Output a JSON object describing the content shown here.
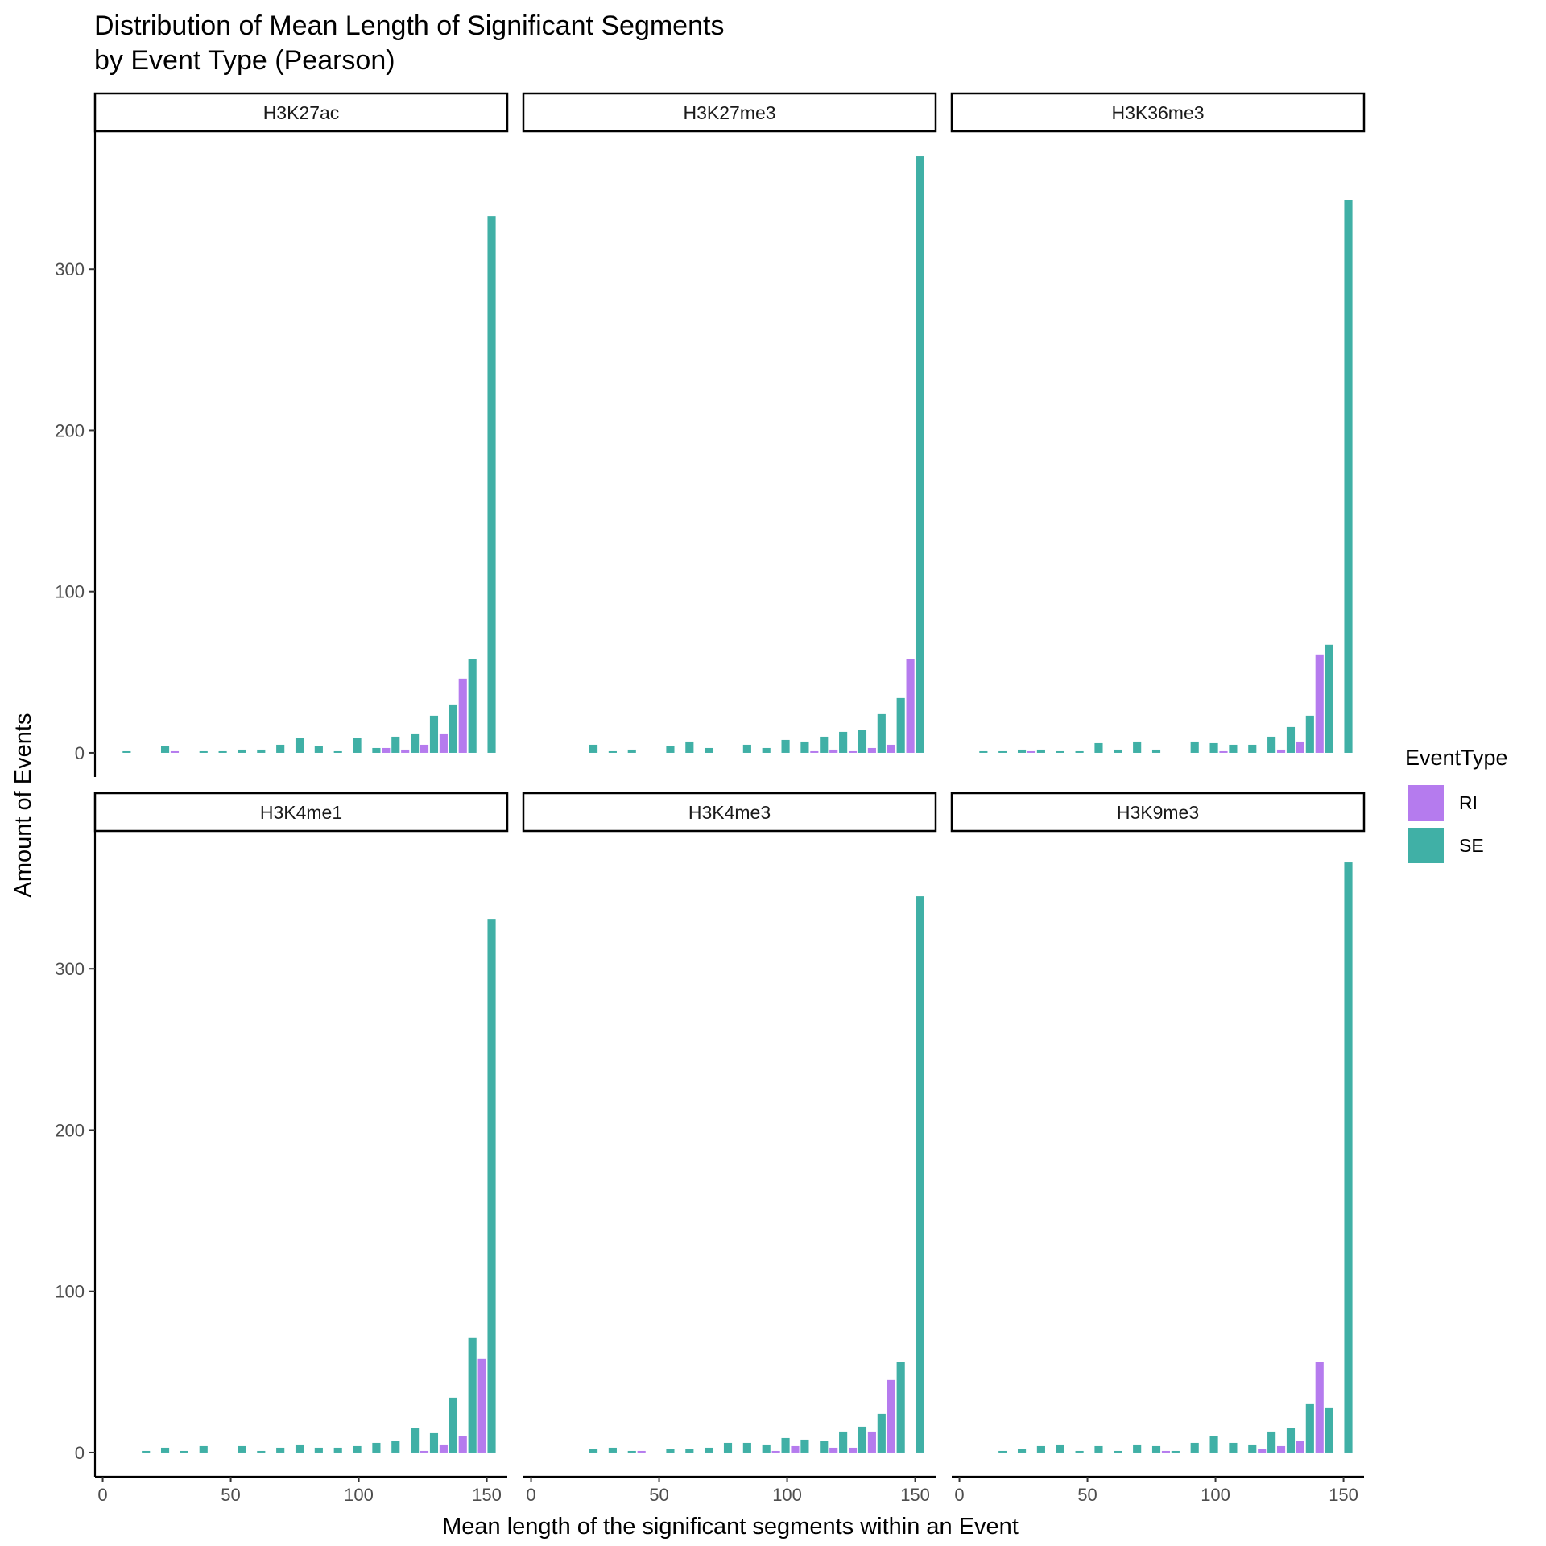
{
  "chart_data": {
    "type": "bar",
    "title_lines": [
      "Distribution of Mean Length of Significant Segments",
      "by Event Type (Pearson)"
    ],
    "xlabel": "Mean length of the significant segments within an Event",
    "ylabel": "Amount of Events",
    "xlim": [
      -3,
      158
    ],
    "ylim": [
      -15,
      385
    ],
    "x_ticks": [
      0,
      50,
      100,
      150
    ],
    "y_ticks": [
      0,
      100,
      200,
      300
    ],
    "bin_width": 7.5,
    "grid": false,
    "legend": {
      "title": "EventType",
      "placement": "right",
      "entries": [
        {
          "name": "RI",
          "color": "#b57bee"
        },
        {
          "name": "SE",
          "color": "#40b0a6"
        }
      ]
    },
    "bin_centers": [
      7.5,
      15,
      22.5,
      30,
      37.5,
      45,
      52.5,
      60,
      67.5,
      75,
      82.5,
      90,
      97.5,
      105,
      112.5,
      120,
      127.5,
      135,
      142.5,
      150
    ],
    "panels": [
      {
        "name": "H3K27ac",
        "series": [
          {
            "name": "RI",
            "values": [
              0,
              0,
              0,
              1,
              0,
              0,
              0,
              0,
              0,
              0,
              0,
              0,
              0,
              0,
              3,
              2,
              5,
              12,
              46,
              0
            ]
          },
          {
            "name": "SE",
            "values": [
              1,
              0,
              4,
              0,
              1,
              1,
              2,
              2,
              5,
              9,
              4,
              1,
              9,
              3,
              10,
              12,
              23,
              30,
              58,
              333
            ]
          }
        ]
      },
      {
        "name": "H3K27me3",
        "series": [
          {
            "name": "RI",
            "values": [
              0,
              0,
              0,
              0,
              0,
              0,
              0,
              0,
              0,
              0,
              0,
              0,
              0,
              0,
              1,
              2,
              1,
              3,
              5,
              58
            ]
          },
          {
            "name": "SE",
            "values": [
              0,
              0,
              5,
              1,
              2,
              0,
              4,
              7,
              3,
              0,
              5,
              3,
              8,
              7,
              10,
              13,
              14,
              24,
              34,
              370
            ]
          }
        ]
      },
      {
        "name": "H3K36me3",
        "series": [
          {
            "name": "RI",
            "values": [
              0,
              0,
              0,
              1,
              0,
              0,
              0,
              0,
              0,
              0,
              0,
              0,
              0,
              1,
              0,
              0,
              2,
              7,
              61,
              0
            ]
          },
          {
            "name": "SE",
            "values": [
              1,
              1,
              2,
              2,
              1,
              1,
              6,
              2,
              7,
              2,
              0,
              7,
              6,
              5,
              5,
              10,
              16,
              23,
              67,
              343
            ]
          }
        ]
      },
      {
        "name": "H3K4me1",
        "series": [
          {
            "name": "RI",
            "values": [
              0,
              0,
              0,
              0,
              0,
              0,
              0,
              0,
              0,
              0,
              0,
              0,
              0,
              0,
              0,
              0,
              1,
              5,
              10,
              58
            ]
          },
          {
            "name": "SE",
            "values": [
              0,
              1,
              3,
              1,
              4,
              0,
              4,
              1,
              3,
              5,
              3,
              3,
              4,
              6,
              7,
              15,
              12,
              34,
              71,
              331
            ]
          }
        ]
      },
      {
        "name": "H3K4me3",
        "series": [
          {
            "name": "RI",
            "values": [
              0,
              0,
              0,
              0,
              0,
              1,
              0,
              0,
              0,
              0,
              0,
              0,
              1,
              4,
              0,
              3,
              3,
              13,
              45,
              0
            ]
          },
          {
            "name": "SE",
            "values": [
              0,
              0,
              2,
              3,
              1,
              0,
              2,
              2,
              3,
              6,
              6,
              5,
              9,
              8,
              7,
              13,
              16,
              24,
              56,
              345
            ]
          }
        ]
      },
      {
        "name": "H3K9me3",
        "series": [
          {
            "name": "RI",
            "values": [
              0,
              0,
              0,
              0,
              0,
              0,
              0,
              0,
              0,
              0,
              1,
              0,
              0,
              0,
              0,
              2,
              4,
              7,
              56,
              0
            ]
          },
          {
            "name": "SE",
            "values": [
              0,
              1,
              2,
              4,
              5,
              1,
              4,
              1,
              5,
              4,
              1,
              6,
              10,
              6,
              5,
              13,
              15,
              30,
              28,
              366
            ]
          }
        ]
      }
    ]
  }
}
